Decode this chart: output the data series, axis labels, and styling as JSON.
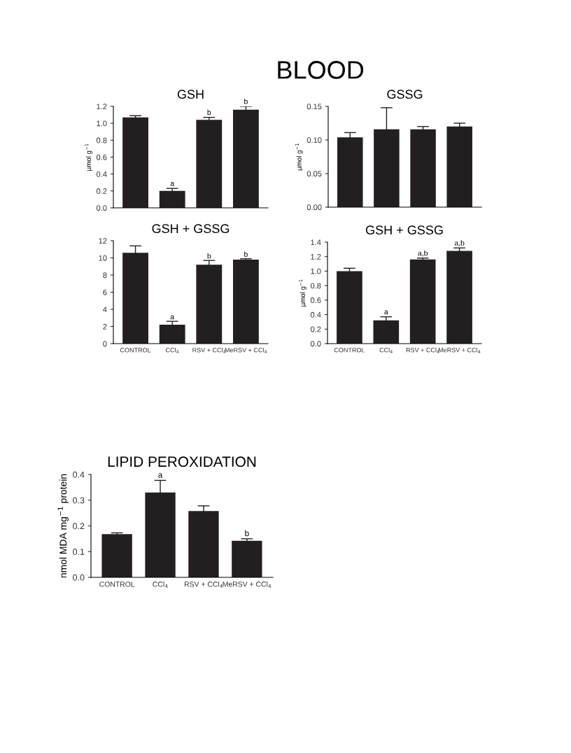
{
  "chart_data": [
    {
      "type": "bar",
      "title": "GSH",
      "ylabel": "µmol g$^{−1}$",
      "categories": [
        "CONTROL",
        "CCl$_{4}$",
        "RSV + CCl$_{4}$",
        "MeRSV + CCl$_{4}$"
      ],
      "color": "#231f20",
      "values": [
        1.07,
        0.2,
        1.04,
        1.16
      ],
      "errors": [
        0.02,
        0.03,
        0.03,
        0.04
      ],
      "ylim": [
        0,
        1.2
      ],
      "yticks": [
        {
          "value": 0,
          "label": "0.0"
        },
        {
          "value": 0.2,
          "label": "0.2"
        },
        {
          "value": 0.4,
          "label": "0.4"
        },
        {
          "value": 0.6,
          "label": "0.6"
        },
        {
          "value": 0.8,
          "label": "0.8"
        },
        {
          "value": 1.0,
          "label": "1.0"
        },
        {
          "value": 1.2,
          "label": "1.2"
        }
      ],
      "tick_labels": "y",
      "grid": false,
      "annotations": [
        "BLOOD",
        {
          "text": "a",
          "x": "CCl$_{4}$",
          "y": 0.23
        },
        {
          "text": "b",
          "x": "RSV + CCl$_{4}$",
          "y": 1.07
        },
        {
          "text": "b",
          "x": "MeRSV + CCl$_{4}$",
          "y": 1.2
        }
      ]
    },
    {
      "type": "bar",
      "title": "GSSG",
      "ylabel": "µmol g$^{−1}$",
      "categories": [
        "CONTROL",
        "CCl$_{4}$",
        "RSV + CCl$_{4}$",
        "MeRSV + CCl$_{4}$"
      ],
      "color": "#231f20",
      "values": [
        0.104,
        0.116,
        0.116,
        0.12
      ],
      "errors": [
        0.007,
        0.032,
        0.004,
        0.005
      ],
      "ylim": [
        0,
        0.15
      ],
      "yticks": [
        {
          "value": 0,
          "label": "0.00"
        },
        {
          "value": 0.05,
          "label": "0.05"
        },
        {
          "value": 0.1,
          "label": "0.10"
        },
        {
          "value": 0.15,
          "label": "0.15"
        }
      ],
      "tick_labels": "y",
      "grid": false
    },
    {
      "type": "bar",
      "title": "GSH + GSSG",
      "categories": [
        "CONTROL",
        "CCl$_{4}$",
        "RSV + CCl$_{4}$",
        "MeRSV + CCl$_{4}$"
      ],
      "color": "#231f20",
      "values": [
        10.6,
        2.2,
        9.2,
        9.8
      ],
      "errors": [
        0.8,
        0.4,
        0.5,
        0.1
      ],
      "ylim": [
        0,
        12
      ],
      "yticks": [
        0,
        2,
        4,
        6,
        8,
        10,
        12
      ],
      "grid": false,
      "annotations": [
        {
          "text": "a",
          "x": "CCl$_{4}$",
          "y": 2.55
        },
        {
          "text": "b",
          "x": "RSV + CCl$_{4}$",
          "y": 9.65
        },
        {
          "text": "b",
          "x": "MeRSV + CCl$_{4}$",
          "y": 9.85
        }
      ]
    },
    {
      "type": "bar",
      "title": "GSH + GSSG",
      "ylabel": "µmol g$^{−1}$",
      "categories": [
        "CONTROL",
        "CCl$_{4}$",
        "RSV + CCl$_{4}$",
        "MeRSV + CCl$_{4}$"
      ],
      "color": "#231f20",
      "values": [
        1.0,
        0.32,
        1.16,
        1.28
      ],
      "errors": [
        0.04,
        0.05,
        0.02,
        0.04
      ],
      "ylim": [
        0,
        1.4
      ],
      "yticks": [
        {
          "value": 0,
          "label": "0.0"
        },
        {
          "value": 0.2,
          "label": "0.2"
        },
        {
          "value": 0.4,
          "label": "0.4"
        },
        {
          "value": 0.6,
          "label": "0.6"
        },
        {
          "value": 0.8,
          "label": "0.8"
        },
        {
          "value": 1.0,
          "label": "1.0"
        },
        {
          "value": 1.2,
          "label": "1.2"
        },
        {
          "value": 1.4,
          "label": "1.4"
        }
      ],
      "grid": false,
      "annotations": [
        {
          "text": "a",
          "x": "CCl$_{4}$",
          "y": 0.37
        },
        {
          "text": "a,b",
          "x": "RSV + CCl$_{4}$",
          "y": 1.18
        },
        {
          "text": "a,b",
          "x": "MeRSV + CCl$_{4}$",
          "y": 1.32
        }
      ]
    },
    {
      "type": "bar",
      "title": "LIPID PEROXIDATION",
      "ylabel": "nmol MDA mg$^{−1}$ protein",
      "categories": [
        "CONTROL",
        "CCl$_{4}$",
        "RSV + CCl$_{4}$",
        "MeRSV + CCl$_{4}$"
      ],
      "color": "#231f20",
      "values": [
        0.168,
        0.33,
        0.258,
        0.142
      ],
      "errors": [
        0.005,
        0.047,
        0.02,
        0.008
      ],
      "ylim": [
        0,
        0.4
      ],
      "yticks": [
        {
          "value": 0,
          "label": "0.0"
        },
        {
          "value": 0.1,
          "label": "0.1"
        },
        {
          "value": 0.2,
          "label": "0.2"
        },
        {
          "value": 0.3,
          "label": "0.3"
        },
        {
          "value": 0.4,
          "label": "0.4"
        }
      ],
      "grid": false,
      "annotations": [
        {
          "text": "a",
          "x": "CCl$_{4}$",
          "y": 0.377
        },
        {
          "text": "b",
          "x": "MeRSV + CCl$_{4}$",
          "y": 0.15
        }
      ]
    }
  ]
}
